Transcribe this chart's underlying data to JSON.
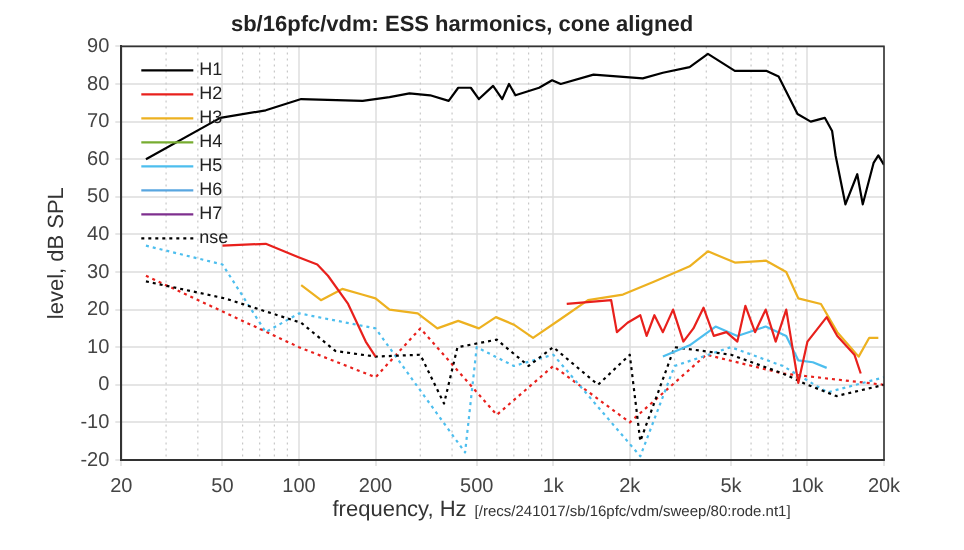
{
  "chart_data": {
    "type": "line",
    "title": "sb/16pfc/vdm: ESS harmonics, cone aligned",
    "xlabel": "frequency, Hz",
    "ylabel": "level, dB SPL",
    "annotations": [
      "[/recs/241017/sb/16pfc/vdm/sweep/80:rode.nt1]"
    ],
    "log": "x",
    "grid": true,
    "legend": "top left",
    "marker": "none",
    "xlim": [
      20,
      20000
    ],
    "xticks": [
      20,
      50,
      100,
      200,
      500,
      {
        "value": 1000,
        "label": "1k"
      },
      {
        "value": 2000,
        "label": "2k"
      },
      {
        "value": 5000,
        "label": "5k"
      },
      {
        "value": 10000,
        "label": "10k"
      },
      {
        "value": 20000,
        "label": "20k"
      }
    ],
    "ylim": [
      -20,
      90
    ],
    "yticks": [
      -20,
      -10,
      0,
      10,
      20,
      30,
      40,
      50,
      60,
      70,
      80,
      90
    ],
    "series": [
      {
        "name": "H1",
        "color": "#000000",
        "line_style": "solid",
        "x": [
          25,
          49,
          74,
          102,
          178,
          227,
          272,
          328,
          388,
          423,
          474,
          510,
          580,
          630,
          670,
          710,
          880,
          990,
          1070,
          1440,
          2250,
          2700,
          3440,
          4060,
          5180,
          6880,
          7700,
          9140,
          10300,
          11700,
          12500,
          12900,
          14100,
          15700,
          16500,
          18200,
          19000,
          20000
        ],
        "values": [
          60,
          71,
          73,
          76,
          75.5,
          76.5,
          77.5,
          77,
          75.5,
          79,
          79,
          76,
          79.5,
          76,
          80,
          77,
          79,
          81,
          80,
          82.5,
          81.5,
          83,
          84.5,
          88,
          83.5,
          83.5,
          82,
          72,
          70,
          71,
          67.5,
          61,
          48,
          56,
          48,
          59,
          61,
          58.5
        ]
      },
      {
        "name": "H2",
        "color": "#e8201c",
        "line_style": "solid",
        "x": [
          50,
          74,
          99,
          118,
          130,
          156,
          183,
          200,
          1070,
          1130,
          1690,
          1780,
          1960,
          2200,
          2330,
          2500,
          2700,
          2960,
          3250,
          3560,
          3900,
          4280,
          4800,
          5300,
          5700,
          6220,
          6850,
          7500,
          8250,
          9200,
          10000,
          11900,
          13100,
          15300,
          16200
        ],
        "values": [
          37,
          37.5,
          34,
          32,
          29,
          21.5,
          11.5,
          7.5,
          null,
          21.5,
          22.5,
          14,
          16.5,
          18.5,
          13,
          18.5,
          14,
          20,
          11.5,
          15,
          20.5,
          13,
          14,
          11.5,
          21,
          14,
          20,
          11.5,
          20,
          0.5,
          11.5,
          18,
          13,
          8,
          3
        ]
      },
      {
        "name": "H3",
        "color": "#edb120",
        "line_style": "solid",
        "x": [
          102,
          122,
          148,
          177,
          200,
          227,
          293,
          350,
          423,
          510,
          595,
          700,
          833,
          1070,
          1370,
          1880,
          2500,
          3440,
          4060,
          5180,
          6880,
          8250,
          9200,
          11300,
          13100,
          15900,
          17500,
          19000
        ],
        "values": [
          26.5,
          22.5,
          25.5,
          24,
          23,
          20,
          19,
          15,
          17,
          15,
          18,
          16,
          12.5,
          17.5,
          22.5,
          24,
          27.5,
          31.5,
          35.5,
          32.5,
          33,
          30,
          23,
          21.5,
          14,
          7.5,
          12.5,
          12.5
        ]
      },
      {
        "name": "H4",
        "color": "#77ac30",
        "line_style": "solid"
      },
      {
        "name": "H5",
        "color": "#4dbeee",
        "line_style": "solid",
        "x": [
          2700,
          3440,
          4350,
          5300,
          6850,
          8250,
          9200,
          10500,
          11900
        ],
        "values": [
          7.5,
          10.5,
          15.5,
          13,
          15.5,
          13,
          6.5,
          6,
          4.5
        ]
      },
      {
        "name": "H6",
        "color": "#58a6e0",
        "line_style": "solid"
      },
      {
        "name": "H7",
        "color": "#7e2f8e",
        "line_style": "solid"
      },
      {
        "name": "nse",
        "color": "#000000",
        "line_style": "dotted",
        "x": [
          25,
          51,
          102,
          139,
          200,
          300,
          372,
          420,
          600,
          800,
          1000,
          1500,
          2000,
          2200,
          3000,
          5000,
          8000,
          10000,
          13000,
          20000
        ],
        "values": [
          27.5,
          23,
          16.5,
          9,
          7.5,
          8,
          -5,
          10,
          12,
          5,
          10,
          0,
          8,
          -15,
          10,
          8,
          3,
          0,
          -3,
          0
        ]
      },
      {
        "color": "#4dbeee",
        "line_style": "dotted",
        "x": [
          25,
          50,
          74,
          100,
          200,
          450,
          500,
          700,
          1000,
          2200,
          3000,
          5000,
          8000,
          12000,
          20000
        ],
        "values": [
          37,
          32,
          14,
          19,
          15,
          -18,
          10,
          5,
          8,
          -19,
          5,
          10,
          5,
          -2,
          2
        ]
      },
      {
        "color": "#e8201c",
        "line_style": "dotted",
        "x": [
          25,
          100,
          200,
          300,
          600,
          1000,
          2000,
          4000,
          8000,
          20000
        ],
        "values": [
          29,
          10,
          2,
          15,
          -8,
          5,
          -10,
          8,
          3,
          0
        ]
      }
    ]
  }
}
